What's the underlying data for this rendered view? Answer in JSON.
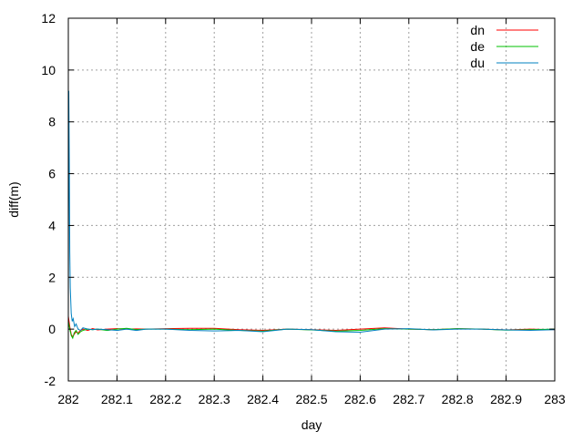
{
  "chart_data": {
    "type": "line",
    "title": "",
    "xlabel": "day",
    "ylabel": "diff(m)",
    "xlim": [
      282,
      283
    ],
    "ylim": [
      -2,
      12
    ],
    "x_ticks": [
      "282",
      "282.1",
      "282.2",
      "282.3",
      "282.4",
      "282.5",
      "282.6",
      "282.7",
      "282.8",
      "282.9",
      "283"
    ],
    "y_ticks": [
      "-2",
      "0",
      "2",
      "4",
      "6",
      "8",
      "10",
      "12"
    ],
    "grid": true,
    "legend_position": "top-right",
    "series": [
      {
        "name": "dn",
        "color": "#ff0000",
        "x": [
          282.0,
          282.003,
          282.006,
          282.009,
          282.012,
          282.016,
          282.02,
          282.025,
          282.03,
          282.04,
          282.05,
          282.06,
          282.08,
          282.1,
          282.12,
          282.14,
          282.16,
          282.2,
          282.25,
          282.3,
          282.35,
          282.4,
          282.45,
          282.5,
          282.55,
          282.6,
          282.65,
          282.7,
          282.75,
          282.8,
          282.85,
          282.9,
          282.95,
          283.0
        ],
        "y": [
          0.5,
          0.1,
          -0.2,
          -0.3,
          -0.2,
          -0.1,
          -0.15,
          -0.05,
          0.0,
          -0.05,
          0.02,
          -0.03,
          0.0,
          0.02,
          0.0,
          0.01,
          0.0,
          0.02,
          0.03,
          0.03,
          -0.02,
          -0.05,
          0.0,
          -0.02,
          -0.05,
          0.0,
          0.05,
          0.0,
          -0.02,
          0.02,
          0.0,
          -0.03,
          0.0,
          -0.02
        ]
      },
      {
        "name": "de",
        "color": "#00c000",
        "x": [
          282.0,
          282.003,
          282.006,
          282.009,
          282.012,
          282.016,
          282.02,
          282.025,
          282.03,
          282.04,
          282.05,
          282.06,
          282.08,
          282.1,
          282.12,
          282.14,
          282.16,
          282.2,
          282.25,
          282.3,
          282.35,
          282.4,
          282.45,
          282.5,
          282.55,
          282.6,
          282.65,
          282.7,
          282.75,
          282.8,
          282.85,
          282.9,
          282.95,
          283.0
        ],
        "y": [
          0.3,
          0.0,
          -0.25,
          -0.35,
          -0.15,
          -0.05,
          -0.2,
          -0.1,
          -0.05,
          0.0,
          -0.02,
          0.0,
          -0.05,
          0.0,
          0.03,
          -0.02,
          0.0,
          0.0,
          -0.02,
          0.0,
          -0.05,
          -0.08,
          0.0,
          -0.03,
          -0.08,
          -0.05,
          0.02,
          0.0,
          -0.02,
          0.02,
          0.0,
          -0.04,
          -0.02,
          0.0
        ]
      },
      {
        "name": "du",
        "color": "#0080c0",
        "x": [
          282.0,
          282.001,
          282.002,
          282.003,
          282.004,
          282.006,
          282.008,
          282.01,
          282.013,
          282.016,
          282.02,
          282.025,
          282.03,
          282.04,
          282.05,
          282.06,
          282.08,
          282.1,
          282.12,
          282.14,
          282.16,
          282.2,
          282.25,
          282.3,
          282.35,
          282.4,
          282.45,
          282.5,
          282.55,
          282.6,
          282.65,
          282.7,
          282.75,
          282.8,
          282.85,
          282.9,
          282.95,
          283.0
        ],
        "y": [
          0.4,
          9.2,
          6.5,
          3.0,
          1.6,
          0.6,
          0.3,
          0.4,
          0.1,
          0.2,
          0.0,
          -0.05,
          0.05,
          0.0,
          -0.02,
          0.0,
          -0.02,
          -0.05,
          0.0,
          -0.05,
          0.0,
          0.0,
          -0.05,
          -0.07,
          -0.05,
          -0.1,
          0.0,
          -0.02,
          -0.1,
          -0.12,
          0.0,
          0.02,
          -0.03,
          0.0,
          0.0,
          -0.03,
          -0.05,
          -0.02
        ]
      }
    ]
  }
}
